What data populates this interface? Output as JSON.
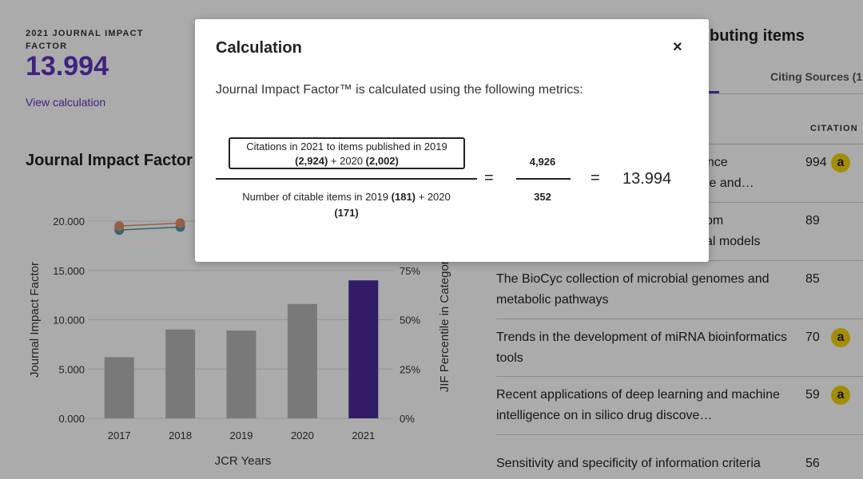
{
  "jif": {
    "label": "2021 JOURNAL IMPACT FACTOR",
    "value": "13.994",
    "view_calculation": "View calculation"
  },
  "chart_section": {
    "title": "Journal Impact Factor"
  },
  "chart_data": {
    "type": "bar",
    "title": "Journal Impact Factor",
    "categories": [
      "2017",
      "2018",
      "2019",
      "2020",
      "2021"
    ],
    "values": [
      6.2,
      9.0,
      8.9,
      11.6,
      13.994
    ],
    "highlight_index": 4,
    "xlabel": "JCR Years",
    "ylabel": "Journal Impact Factor",
    "ylim": [
      0,
      20
    ],
    "yticks": [
      "0.000",
      "5.000",
      "10.000",
      "15.000",
      "20.000"
    ],
    "y2label": "JIF Percentile in Category",
    "y2ticks": [
      "0%",
      "25%",
      "50%",
      "75%"
    ],
    "line_series": [
      {
        "name": "percentile-a",
        "color": "#4a9aa8",
        "x": [
          "2017",
          "2018"
        ],
        "values": [
          19.1,
          19.4
        ]
      },
      {
        "name": "percentile-b",
        "color": "#e0906a",
        "x": [
          "2017",
          "2018"
        ],
        "values": [
          19.5,
          19.8
        ]
      }
    ],
    "colors": {
      "bar": "#b5b5b5",
      "highlight": "#4b2a9c"
    }
  },
  "right_panel": {
    "title": "buting items",
    "tab_citing": "Citing Sources (1",
    "col_citation": "CITATION",
    "rows": [
      {
        "title_line1": "ence",
        "title_line2": "ice and…",
        "count": "994",
        "open_access": true
      },
      {
        "title_line1": "om",
        "title_line2": "al models",
        "count": "89",
        "open_access": false
      },
      {
        "title": "The BioCyc collection of microbial genomes and metabolic pathways",
        "count": "85",
        "open_access": false
      },
      {
        "title": "Trends in the development of miRNA bioinformatics tools",
        "count": "70",
        "open_access": true
      },
      {
        "title": "Recent applications of deep learning and machine intelligence on in silico drug discove…",
        "count": "59",
        "open_access": true
      },
      {
        "title": "Sensitivity and specificity of information criteria",
        "count": "56",
        "open_access": false
      }
    ],
    "oa_glyph": "a"
  },
  "modal": {
    "title": "Calculation",
    "close": "×",
    "description": "Journal Impact Factor™ is calculated using the following metrics:",
    "numerator_text": "Citations in 2021 to items published in 2019",
    "numerator_2019": "(2,924)",
    "numerator_plus": " + 2020 ",
    "numerator_2020": "(2,002)",
    "denominator_text": "Number of citable items in 2019 ",
    "denominator_2019": "(181)",
    "denominator_plus": " + 2020",
    "denominator_2020": "(171)",
    "equals": "=",
    "numerator_total": "4,926",
    "denominator_total": "352",
    "result": "13.994"
  }
}
